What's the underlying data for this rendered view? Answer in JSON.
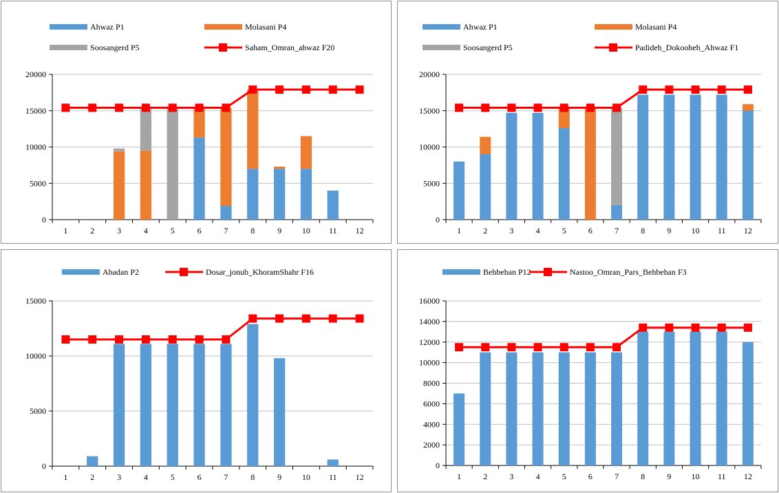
{
  "chart_data": [
    {
      "type": "bar",
      "stacked": true,
      "categories": [
        "1",
        "2",
        "3",
        "4",
        "5",
        "6",
        "7",
        "8",
        "9",
        "10",
        "11",
        "12"
      ],
      "series": [
        {
          "name": "Ahwaz P1",
          "kind": "bar",
          "color": "#5b9bd5",
          "values": [
            0,
            0,
            0,
            0,
            0,
            11300,
            1900,
            7000,
            7000,
            7000,
            4000,
            0
          ]
        },
        {
          "name": "Molasani P4",
          "kind": "bar",
          "color": "#ed7d31",
          "values": [
            0,
            0,
            9400,
            9500,
            0,
            4000,
            13500,
            10900,
            300,
            4500,
            0,
            0
          ]
        },
        {
          "name": "Soosangerd P5",
          "kind": "bar",
          "color": "#a5a5a5",
          "values": [
            0,
            0,
            400,
            5900,
            15500,
            0,
            0,
            0,
            0,
            0,
            0,
            0
          ]
        },
        {
          "name": "Saham_Omran_ahwaz F20",
          "kind": "line",
          "color": "#ff0000",
          "values": [
            15400,
            15400,
            15400,
            15400,
            15400,
            15400,
            15400,
            17900,
            17900,
            17900,
            17900,
            17900
          ]
        }
      ],
      "ylim": [
        0,
        20000
      ],
      "yticks": [
        "0",
        "5000",
        "10000",
        "15000",
        "20000"
      ],
      "grid": true,
      "legend_position": "top"
    },
    {
      "type": "bar",
      "stacked": true,
      "categories": [
        "1",
        "2",
        "3",
        "4",
        "5",
        "6",
        "7",
        "8",
        "9",
        "10",
        "11",
        "12"
      ],
      "series": [
        {
          "name": "Ahwaz P1",
          "kind": "bar",
          "color": "#5b9bd5",
          "values": [
            8000,
            9000,
            14700,
            14700,
            12600,
            0,
            2000,
            17200,
            17200,
            17200,
            17200,
            15000
          ]
        },
        {
          "name": "Molasani P4",
          "kind": "bar",
          "color": "#ed7d31",
          "values": [
            0,
            2400,
            0,
            0,
            2800,
            15400,
            0,
            0,
            0,
            0,
            0,
            900
          ]
        },
        {
          "name": "Soosangerd P5",
          "kind": "bar",
          "color": "#a5a5a5",
          "values": [
            0,
            0,
            0,
            0,
            0,
            0,
            13400,
            0,
            0,
            0,
            0,
            0
          ]
        },
        {
          "name": "Padideh_Dokooheh_Ahwaz F1",
          "kind": "line",
          "color": "#ff0000",
          "values": [
            15400,
            15400,
            15400,
            15400,
            15400,
            15400,
            15400,
            17900,
            17900,
            17900,
            17900,
            17900
          ]
        }
      ],
      "ylim": [
        0,
        20000
      ],
      "yticks": [
        "0",
        "5000",
        "10000",
        "15000",
        "20000"
      ],
      "grid": true,
      "legend_position": "top"
    },
    {
      "type": "bar",
      "stacked": true,
      "categories": [
        "1",
        "2",
        "3",
        "4",
        "5",
        "6",
        "7",
        "8",
        "9",
        "10",
        "11",
        "12"
      ],
      "series": [
        {
          "name": "Abadan P2",
          "kind": "bar",
          "color": "#5b9bd5",
          "values": [
            0,
            900,
            11100,
            11100,
            11100,
            11100,
            11100,
            12900,
            9800,
            0,
            600,
            0
          ]
        },
        {
          "name": "Dosar_jonub_KhoramShahr F16",
          "kind": "line",
          "color": "#ff0000",
          "values": [
            11500,
            11500,
            11500,
            11500,
            11500,
            11500,
            11500,
            13400,
            13400,
            13400,
            13400,
            13400
          ]
        }
      ],
      "ylim": [
        0,
        15000
      ],
      "yticks": [
        "0",
        "5000",
        "10000",
        "15000"
      ],
      "grid": true,
      "legend_position": "top"
    },
    {
      "type": "bar",
      "stacked": true,
      "categories": [
        "1",
        "2",
        "3",
        "4",
        "5",
        "6",
        "7",
        "8",
        "9",
        "10",
        "11",
        "12"
      ],
      "series": [
        {
          "name": "Behbehan P12",
          "kind": "bar",
          "color": "#5b9bd5",
          "values": [
            7000,
            11000,
            11000,
            11000,
            11000,
            11000,
            11000,
            13000,
            13000,
            13000,
            13000,
            12000
          ]
        },
        {
          "name": "Nastoo_Omran_Pars_Behbehan F3",
          "kind": "line",
          "color": "#ff0000",
          "values": [
            11500,
            11500,
            11500,
            11500,
            11500,
            11500,
            11500,
            13400,
            13400,
            13400,
            13400,
            13400
          ]
        }
      ],
      "ylim": [
        0,
        16000
      ],
      "yticks": [
        "0",
        "2000",
        "4000",
        "6000",
        "8000",
        "10000",
        "12000",
        "14000",
        "16000"
      ],
      "grid": true,
      "legend_position": "top"
    }
  ]
}
